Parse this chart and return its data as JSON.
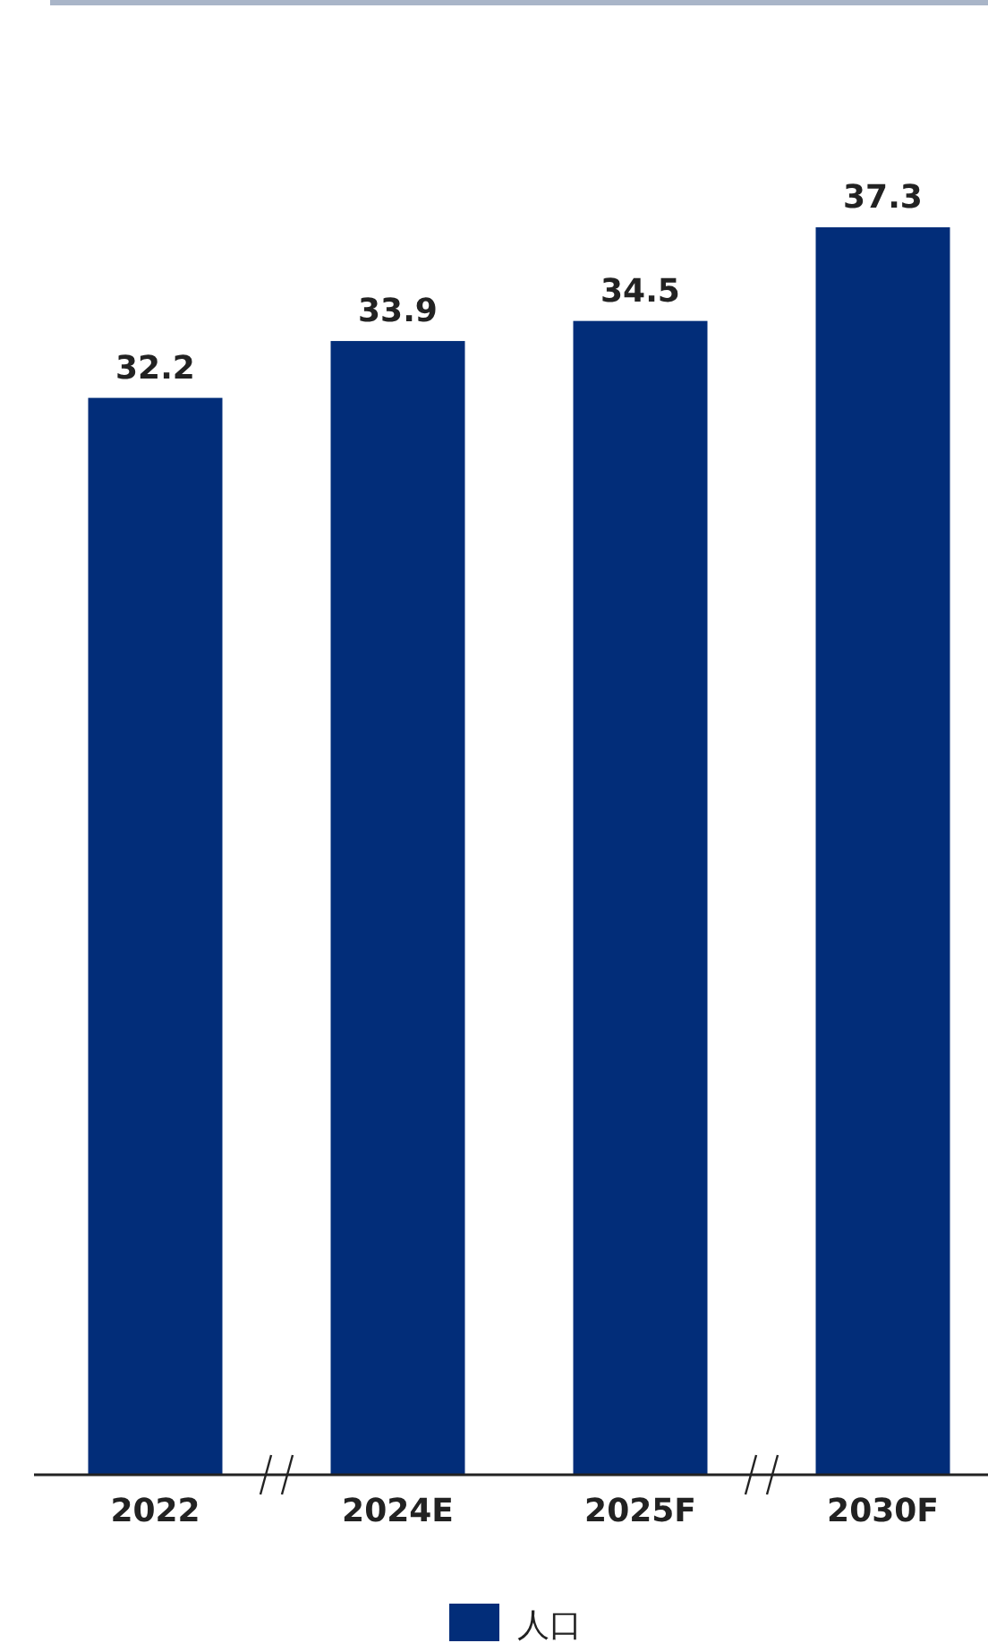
{
  "chart_data": {
    "type": "bar",
    "categories": [
      "2022",
      "2024E",
      "2025F",
      "2030F"
    ],
    "series": [
      {
        "name": "人口",
        "color": "#022d79",
        "values": [
          32.2,
          33.9,
          34.5,
          37.3
        ]
      }
    ],
    "data_labels": true,
    "legend": "bottom"
  }
}
